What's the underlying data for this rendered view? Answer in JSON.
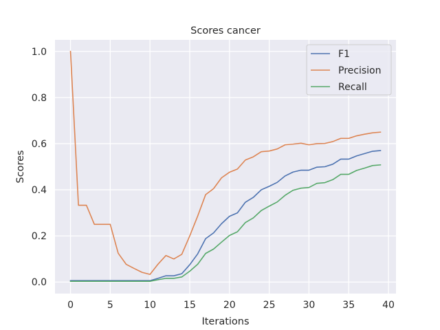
{
  "chart_data": {
    "type": "line",
    "title": "Scores cancer",
    "xlabel": "Iterations",
    "ylabel": "Scores",
    "xlim": [
      -1.95,
      40.95
    ],
    "ylim": [
      -0.05,
      1.05
    ],
    "xticks": [
      0,
      5,
      10,
      15,
      20,
      25,
      30,
      35,
      40
    ],
    "yticks": [
      0.0,
      0.2,
      0.4,
      0.6,
      0.8,
      1.0
    ],
    "xtick_labels": [
      "0",
      "5",
      "10",
      "15",
      "20",
      "25",
      "30",
      "35",
      "40"
    ],
    "ytick_labels": [
      "0.0",
      "0.2",
      "0.4",
      "0.6",
      "0.8",
      "1.0"
    ],
    "grid": true,
    "legend_position": "upper-right",
    "x": [
      0,
      1,
      2,
      3,
      4,
      5,
      6,
      7,
      8,
      9,
      10,
      11,
      12,
      13,
      14,
      15,
      16,
      17,
      18,
      19,
      20,
      21,
      22,
      23,
      24,
      25,
      26,
      27,
      28,
      29,
      30,
      31,
      32,
      33,
      34,
      35,
      36,
      37,
      38,
      39
    ],
    "series": [
      {
        "name": "F1",
        "color": "#4c72b0",
        "values": [
          0.006,
          0.006,
          0.006,
          0.006,
          0.006,
          0.006,
          0.006,
          0.006,
          0.006,
          0.006,
          0.006,
          0.016,
          0.027,
          0.027,
          0.036,
          0.075,
          0.122,
          0.188,
          0.213,
          0.253,
          0.285,
          0.3,
          0.346,
          0.367,
          0.4,
          0.415,
          0.432,
          0.46,
          0.477,
          0.485,
          0.485,
          0.498,
          0.5,
          0.511,
          0.533,
          0.533,
          0.547,
          0.557,
          0.567,
          0.57
        ]
      },
      {
        "name": "Precision",
        "color": "#dd8452",
        "values": [
          1.0,
          0.333,
          0.333,
          0.25,
          0.25,
          0.25,
          0.125,
          0.077,
          0.059,
          0.042,
          0.033,
          0.077,
          0.115,
          0.1,
          0.12,
          0.2,
          0.286,
          0.379,
          0.405,
          0.452,
          0.476,
          0.49,
          0.529,
          0.543,
          0.565,
          0.568,
          0.577,
          0.595,
          0.598,
          0.602,
          0.595,
          0.6,
          0.601,
          0.609,
          0.623,
          0.623,
          0.634,
          0.641,
          0.647,
          0.65
        ]
      },
      {
        "name": "Recall",
        "color": "#55a868",
        "values": [
          0.003,
          0.003,
          0.003,
          0.003,
          0.003,
          0.003,
          0.003,
          0.003,
          0.003,
          0.003,
          0.003,
          0.01,
          0.016,
          0.016,
          0.022,
          0.047,
          0.077,
          0.124,
          0.143,
          0.173,
          0.202,
          0.218,
          0.258,
          0.278,
          0.31,
          0.329,
          0.347,
          0.376,
          0.398,
          0.407,
          0.41,
          0.428,
          0.431,
          0.444,
          0.467,
          0.467,
          0.484,
          0.494,
          0.505,
          0.508
        ]
      }
    ]
  }
}
